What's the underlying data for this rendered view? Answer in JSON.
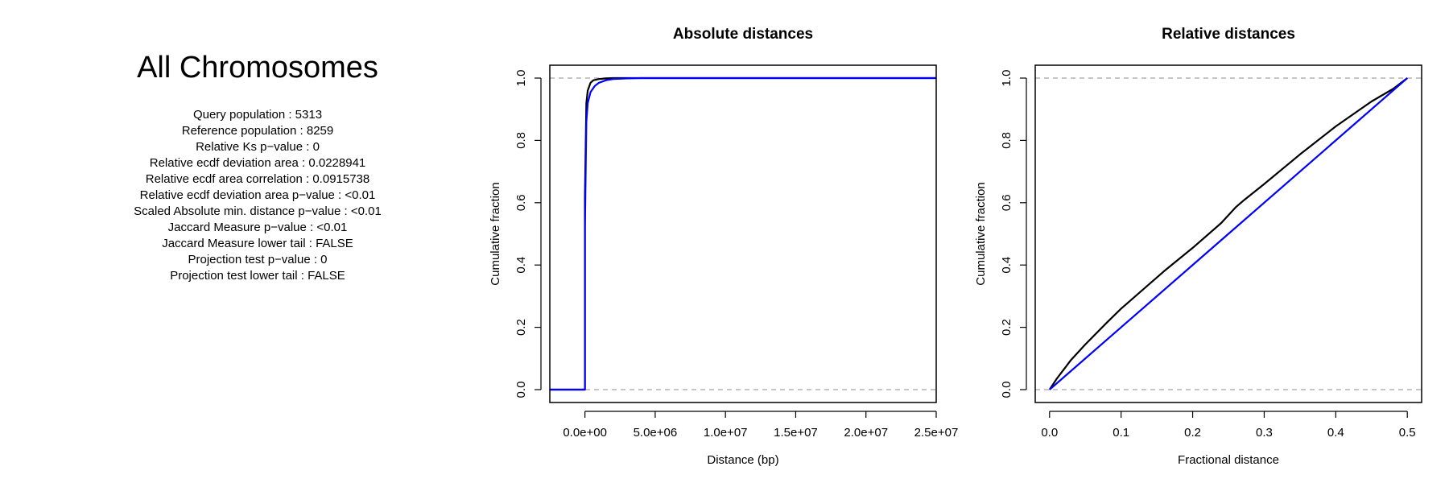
{
  "header": {
    "title": "All Chromosomes"
  },
  "stats": [
    "Query population : 5313",
    "Reference population : 8259",
    "Relative Ks p−value : 0",
    "Relative ecdf deviation area : 0.0228941",
    "Relative ecdf area correlation : 0.0915738",
    "Relative ecdf deviation area p−value : <0.01",
    "Scaled Absolute min. distance p−value : <0.01",
    "Jaccard Measure p−value : <0.01",
    "Jaccard Measure lower tail : FALSE",
    "Projection test p−value : 0",
    "Projection test lower tail : FALSE"
  ],
  "colors": {
    "query": "#000000",
    "reference": "#0000ff",
    "reference_lines": "#b3b3b3"
  },
  "chart_data": [
    {
      "type": "line",
      "title": "Absolute distances",
      "xlabel": "Distance (bp)",
      "ylabel": "Cumulative fraction",
      "xlim": [
        -2500000,
        25000000
      ],
      "ylim": [
        0,
        1
      ],
      "x_ticks": [
        0,
        5000000,
        10000000,
        15000000,
        20000000,
        25000000
      ],
      "x_tick_labels": [
        "0.0e+00",
        "5.0e+06",
        "1.0e+07",
        "1.5e+07",
        "2.0e+07",
        "2.5e+07"
      ],
      "y_ticks": [
        0,
        0.2,
        0.4,
        0.6,
        0.8,
        1
      ],
      "y_tick_labels": [
        "0.0",
        "0.2",
        "0.4",
        "0.6",
        "0.8",
        "1.0"
      ],
      "hlines": [
        0,
        1
      ],
      "grid": false,
      "series": [
        {
          "color": "#000000",
          "x": [
            -2500000,
            0,
            0,
            100000,
            200000,
            400000,
            600000,
            1000000,
            1500000,
            2000000,
            25000000
          ],
          "y": [
            0,
            0,
            0.62,
            0.92,
            0.96,
            0.985,
            0.993,
            0.997,
            0.999,
            1,
            1
          ]
        },
        {
          "color": "#0000ff",
          "x": [
            -2500000,
            0,
            0,
            100000,
            200000,
            400000,
            700000,
            1000000,
            1500000,
            2000000,
            3000000,
            4000000,
            25000000
          ],
          "y": [
            0,
            0,
            0.52,
            0.86,
            0.92,
            0.955,
            0.975,
            0.985,
            0.993,
            0.997,
            0.999,
            1,
            1
          ]
        }
      ]
    },
    {
      "type": "line",
      "title": "Relative distances",
      "xlabel": "Fractional distance",
      "ylabel": "Cumulative fraction",
      "xlim": [
        -0.02,
        0.52
      ],
      "ylim": [
        0,
        1
      ],
      "x_ticks": [
        0,
        0.1,
        0.2,
        0.3,
        0.4,
        0.5
      ],
      "x_tick_labels": [
        "0.0",
        "0.1",
        "0.2",
        "0.3",
        "0.4",
        "0.5"
      ],
      "y_ticks": [
        0,
        0.2,
        0.4,
        0.6,
        0.8,
        1
      ],
      "y_tick_labels": [
        "0.0",
        "0.2",
        "0.4",
        "0.6",
        "0.8",
        "1.0"
      ],
      "hlines": [
        0,
        1
      ],
      "grid": false,
      "series": [
        {
          "color": "#000000",
          "x": [
            0,
            0.01,
            0.02,
            0.03,
            0.05,
            0.08,
            0.1,
            0.13,
            0.16,
            0.2,
            0.24,
            0.26,
            0.27,
            0.3,
            0.35,
            0.4,
            0.45,
            0.48,
            0.5
          ],
          "y": [
            0,
            0.035,
            0.065,
            0.095,
            0.145,
            0.215,
            0.26,
            0.32,
            0.38,
            0.455,
            0.535,
            0.585,
            0.605,
            0.66,
            0.755,
            0.845,
            0.925,
            0.965,
            1.0
          ]
        },
        {
          "color": "#0000ff",
          "x": [
            0,
            0.5
          ],
          "y": [
            0,
            1
          ]
        }
      ]
    }
  ]
}
